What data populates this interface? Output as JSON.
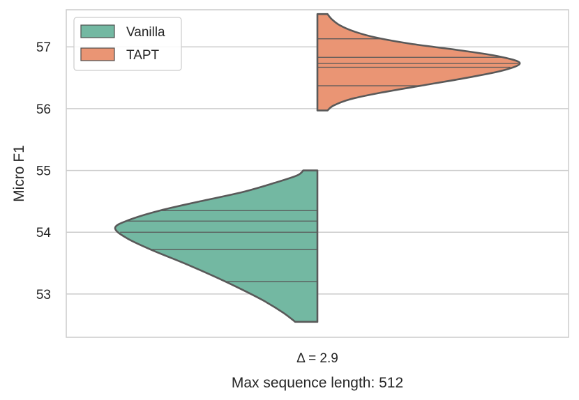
{
  "chart_data": {
    "type": "violin",
    "title": "",
    "xlabel": "Max sequence length: 512",
    "ylabel": "Micro F1",
    "categories": [
      "Δ = 2.9"
    ],
    "ylim": [
      52.3,
      57.6
    ],
    "yticks": [
      53,
      54,
      55,
      56,
      57
    ],
    "grid": true,
    "legend_position": "top-left",
    "series": [
      {
        "name": "Vanilla",
        "color": "#73b8a2",
        "side": "left",
        "range": [
          52.55,
          55.0
        ],
        "profile": [
          [
            52.55,
            0.11
          ],
          [
            52.7,
            0.17
          ],
          [
            52.9,
            0.27
          ],
          [
            53.1,
            0.39
          ],
          [
            53.3,
            0.52
          ],
          [
            53.5,
            0.66
          ],
          [
            53.7,
            0.81
          ],
          [
            53.9,
            0.94
          ],
          [
            54.07,
            1.0
          ],
          [
            54.2,
            0.93
          ],
          [
            54.35,
            0.78
          ],
          [
            54.5,
            0.58
          ],
          [
            54.65,
            0.37
          ],
          [
            54.8,
            0.21
          ],
          [
            54.92,
            0.1
          ],
          [
            55.0,
            0.07
          ]
        ],
        "quartile_lines": [
          53.2,
          53.72,
          54.0,
          54.18,
          54.35
        ]
      },
      {
        "name": "TAPT",
        "color": "#ea9574",
        "side": "right",
        "range": [
          55.97,
          57.53
        ],
        "profile": [
          [
            55.97,
            0.05
          ],
          [
            56.05,
            0.08
          ],
          [
            56.15,
            0.16
          ],
          [
            56.25,
            0.3
          ],
          [
            56.37,
            0.51
          ],
          [
            56.5,
            0.74
          ],
          [
            56.62,
            0.92
          ],
          [
            56.74,
            1.0
          ],
          [
            56.85,
            0.89
          ],
          [
            56.95,
            0.69
          ],
          [
            57.05,
            0.46
          ],
          [
            57.15,
            0.29
          ],
          [
            57.25,
            0.18
          ],
          [
            57.35,
            0.11
          ],
          [
            57.45,
            0.07
          ],
          [
            57.53,
            0.05
          ]
        ],
        "quartile_lines": [
          56.37,
          56.67,
          56.73,
          56.83,
          57.13
        ]
      }
    ]
  }
}
